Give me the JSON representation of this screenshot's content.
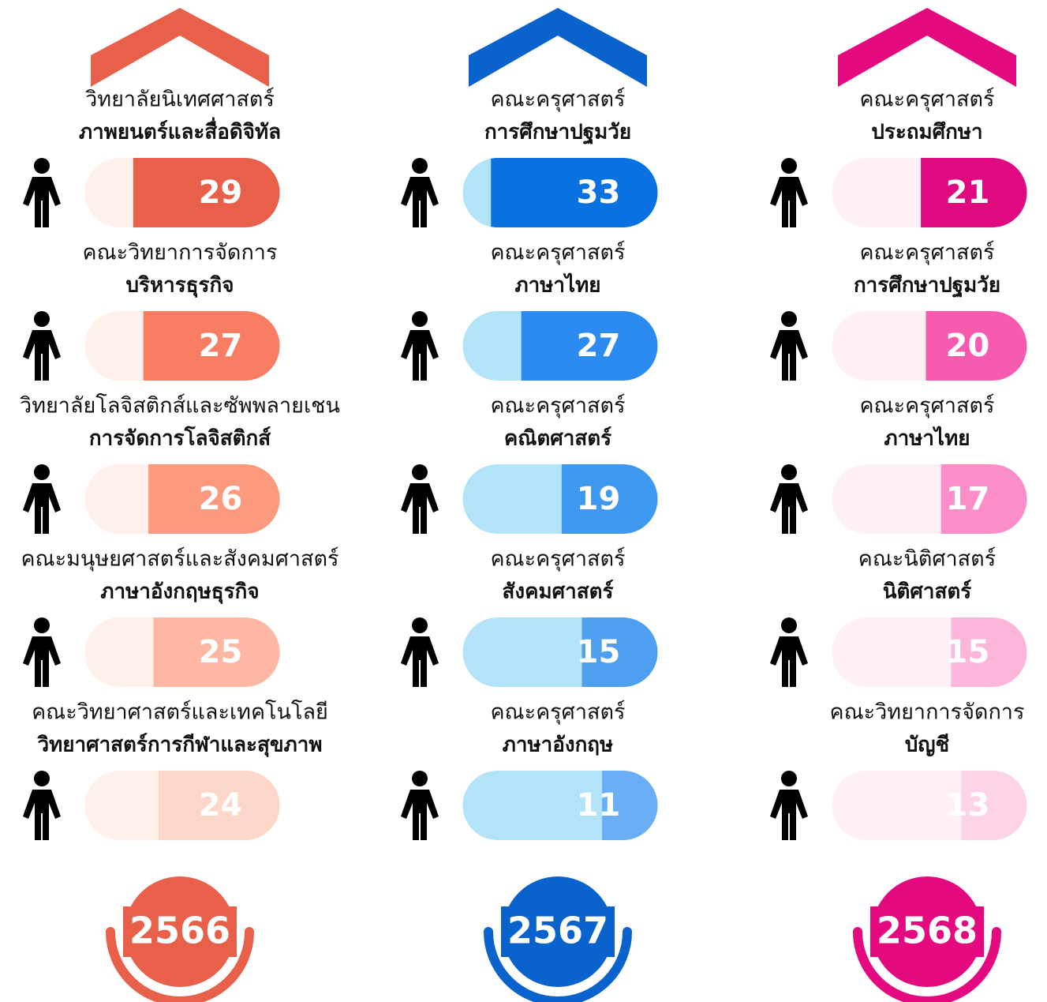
{
  "columns": [
    {
      "year": "2566",
      "color": "#e8604a",
      "track": "#fff0eb",
      "items": [
        {
          "faculty": "วิทยาลัยนิเทศศาสตร์",
          "program": "ภาพยนตร์และสื่อดิจิทัล",
          "value": 29,
          "color": "#e8604a"
        },
        {
          "faculty": "คณะวิทยาการจัดการ",
          "program": "บริหารธุรกิจ",
          "value": 27,
          "color": "#f97d62"
        },
        {
          "faculty": "วิทยาลัยโลจิสติกส์และซัพพลายเชน",
          "program": "การจัดการโลจิสติกส์",
          "value": 26,
          "color": "#fc9a80"
        },
        {
          "faculty": "คณะมนุษยศาสตร์และสังคมศาสตร์",
          "program": "ภาษาอังกฤษธุรกิจ",
          "value": 25,
          "color": "#fdb7a3"
        },
        {
          "faculty": "คณะวิทยาศาสตร์และเทคโนโลยี",
          "program": "วิทยาศาสตร์การกีฬาและสุขภาพ",
          "value": 24,
          "color": "#fdd6ca"
        }
      ]
    },
    {
      "year": "2567",
      "color": "#0a62cc",
      "track": "#b3e3f8",
      "items": [
        {
          "faculty": "คณะครุศาสตร์",
          "program": "การศึกษาปฐมวัย",
          "value": 33,
          "color": "#0a72e0"
        },
        {
          "faculty": "คณะครุศาสตร์",
          "program": "ภาษาไทย",
          "value": 27,
          "color": "#2b8bf0"
        },
        {
          "faculty": "คณะครุศาสตร์",
          "program": "คณิตศาสตร์",
          "value": 19,
          "color": "#3d98f0"
        },
        {
          "faculty": "คณะครุศาสตร์",
          "program": "สังคมศาสตร์",
          "value": 15,
          "color": "#4f9ff0"
        },
        {
          "faculty": "คณะครุศาสตร์",
          "program": "ภาษาอังกฤษ",
          "value": 11,
          "color": "#6aaef5"
        }
      ]
    },
    {
      "year": "2568",
      "color": "#e5097f",
      "track": "#fff0f5",
      "items": [
        {
          "faculty": "คณะครุศาสตร์",
          "program": "ประถมศึกษา",
          "value": 21,
          "color": "#e0097f"
        },
        {
          "faculty": "คณะครุศาสตร์",
          "program": "การศึกษาปฐมวัย",
          "value": 20,
          "color": "#f75bb0"
        },
        {
          "faculty": "คณะครุศาสตร์",
          "program": "ภาษาไทย",
          "value": 17,
          "color": "#fb8dc8"
        },
        {
          "faculty": "คณะนิติศาสตร์",
          "program": "นิติศาสตร์",
          "value": 15,
          "color": "#fdb5da"
        },
        {
          "faculty": "คณะวิทยาการจัดการ",
          "program": "บัญชี",
          "value": 13,
          "color": "#fdd3e8"
        }
      ]
    }
  ]
}
